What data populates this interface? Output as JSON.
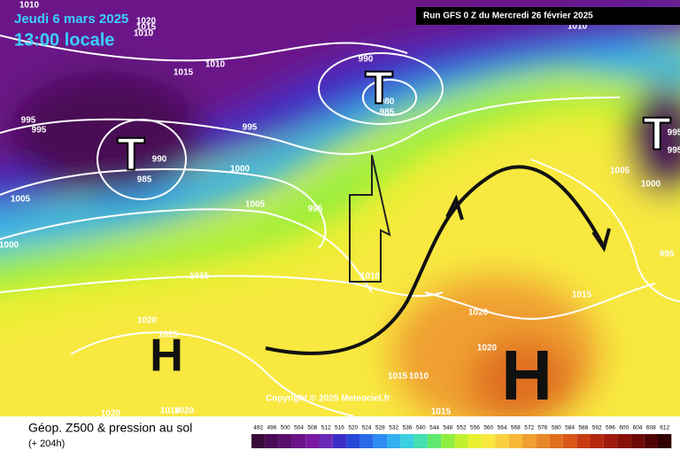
{
  "header": {
    "date": "Jeudi 6 mars 2025",
    "time": "13:00 locale",
    "run": "Run GFS 0 Z du Mercredi 26 février 2025"
  },
  "map": {
    "copyright": "Copyright © 2025 Meteociel.fr",
    "centers": [
      "T",
      "T",
      "T",
      "H",
      "H"
    ],
    "isobar_labels": [
      1010,
      1020,
      1015,
      1010,
      1015,
      1010,
      990,
      980,
      985,
      995,
      995,
      995,
      990,
      985,
      1000,
      1005,
      1005,
      995,
      1000,
      1015,
      1010,
      1020,
      1025,
      1020,
      1020,
      1015,
      1005,
      1000,
      995,
      995,
      995,
      1015,
      1010,
      1015,
      1020,
      1010,
      1020,
      1010
    ]
  },
  "footer": {
    "title": "Géop. Z500 & pression au sol",
    "subtitle": "(+ 204h)"
  },
  "scale": {
    "values": [
      492,
      496,
      500,
      504,
      508,
      512,
      516,
      520,
      524,
      528,
      532,
      536,
      540,
      544,
      548,
      552,
      556,
      560,
      564,
      568,
      572,
      576,
      580,
      584,
      588,
      592,
      596,
      600,
      604,
      608,
      612
    ],
    "colors": [
      "#3a0a3a",
      "#4a0a55",
      "#5a0f6e",
      "#6a1488",
      "#7a1aa0",
      "#6a2ab8",
      "#3c2fc8",
      "#2848d8",
      "#2a6ae8",
      "#2e8cf0",
      "#33b0f0",
      "#3ad0e0",
      "#44e0b0",
      "#60e870",
      "#90ee40",
      "#c0f030",
      "#e8f030",
      "#f8e840",
      "#f8d040",
      "#f8b838",
      "#f0a030",
      "#e88828",
      "#e07020",
      "#d85818",
      "#c83c14",
      "#b42810",
      "#a01a0c",
      "#881008",
      "#6c0806",
      "#500404",
      "#300202"
    ]
  }
}
